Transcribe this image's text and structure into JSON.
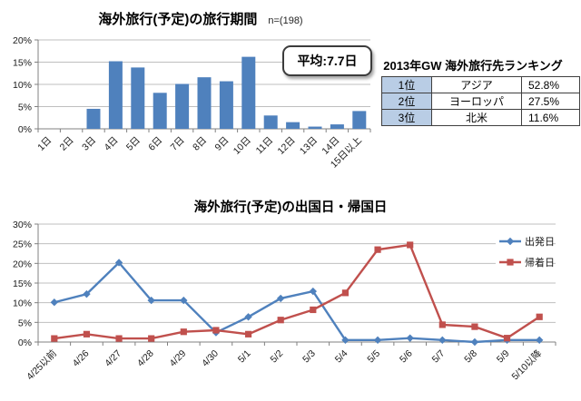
{
  "page": {
    "background": "#ffffff"
  },
  "colors": {
    "bar_blue": "#4F81BD",
    "line_blue": "#4F81BD",
    "line_red": "#C0504D",
    "gridline": "#bfbfbf",
    "axis": "#808080",
    "rank_cell_bg": "#B9CDE5"
  },
  "annotation": {
    "average_label": "平均:7.7日"
  },
  "chart_data": [
    {
      "type": "bar",
      "title": "海外旅行(予定)の旅行期間",
      "subtitle": "n=(198)",
      "categories": [
        "1日",
        "2日",
        "3日",
        "4日",
        "5日",
        "6日",
        "7日",
        "8日",
        "9日",
        "10日",
        "11日",
        "12日",
        "13日",
        "14日",
        "15日以上"
      ],
      "values": [
        0,
        0,
        4.5,
        15.2,
        13.8,
        8.1,
        10.1,
        11.6,
        10.7,
        16.2,
        3.0,
        1.5,
        0.5,
        1.0,
        4.0
      ],
      "xlabel": "",
      "ylabel": "",
      "ylim": [
        0,
        20
      ],
      "ystep": 5,
      "y_tick_labels": [
        "0%",
        "5%",
        "10%",
        "15%",
        "20%"
      ],
      "bar_color": "#4F81BD",
      "grid": true,
      "annotation": "平均:7.7日",
      "legend_position": "none"
    },
    {
      "type": "line",
      "title": "海外旅行(予定)の出国日・帰国日",
      "categories": [
        "4/25以前",
        "4/26",
        "4/27",
        "4/28",
        "4/29",
        "4/30",
        "5/1",
        "5/2",
        "5/3",
        "5/4",
        "5/5",
        "5/6",
        "5/7",
        "5/8",
        "5/9",
        "5/10以降"
      ],
      "series": [
        {
          "name": "出発日",
          "color": "#4F81BD",
          "marker": "diamond",
          "values": [
            10.1,
            12.2,
            20.2,
            10.6,
            10.6,
            2.4,
            6.4,
            11.1,
            12.9,
            0.5,
            0.5,
            1.0,
            0.5,
            0.0,
            0.5,
            0.5
          ]
        },
        {
          "name": "帰着日",
          "color": "#C0504D",
          "marker": "square",
          "values": [
            0.9,
            2.0,
            0.9,
            0.9,
            2.6,
            3.0,
            2.0,
            5.6,
            8.2,
            12.5,
            23.5,
            24.7,
            4.4,
            3.9,
            1.0,
            6.4
          ]
        }
      ],
      "xlabel": "",
      "ylabel": "",
      "ylim": [
        0,
        30
      ],
      "ystep": 5,
      "y_tick_labels": [
        "0%",
        "5%",
        "10%",
        "15%",
        "20%",
        "25%",
        "30%"
      ],
      "grid": true,
      "legend_position": "top-right"
    },
    {
      "type": "table",
      "title": "2013年GW  海外旅行先ランキング",
      "rows": [
        [
          "1位",
          "アジア",
          "52.8%"
        ],
        [
          "2位",
          "ヨーロッパ",
          "27.5%"
        ],
        [
          "3位",
          "北米",
          "11.6%"
        ]
      ]
    }
  ]
}
